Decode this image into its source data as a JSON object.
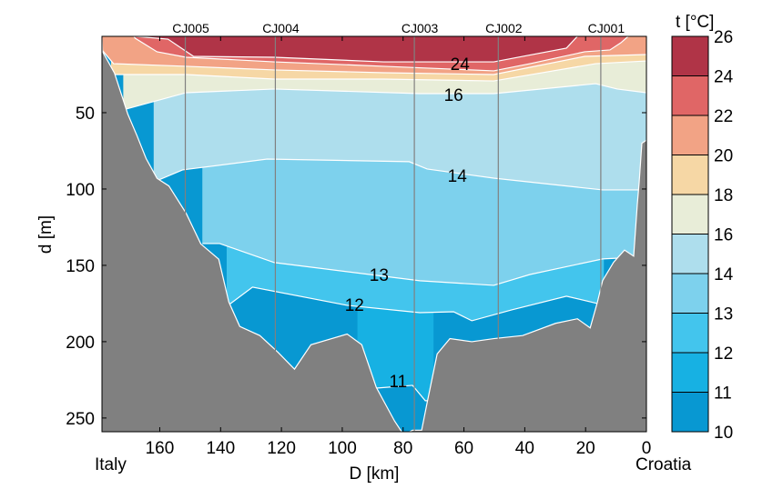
{
  "chart_data": {
    "type": "contour",
    "xlabel": "D [km]",
    "ylabel": "d [m]",
    "xlim": [
      179,
      0
    ],
    "ylim": [
      259,
      0
    ],
    "x_ticks": [
      160,
      140,
      120,
      100,
      80,
      60,
      40,
      20,
      0
    ],
    "y_ticks": [
      50,
      100,
      150,
      200,
      250
    ],
    "left_end_label": "Italy",
    "right_end_label": "Croatia",
    "colorbar": {
      "title": "t [°C]",
      "ticks": [
        10,
        11,
        12,
        13,
        14,
        16,
        18,
        20,
        22,
        24,
        26
      ],
      "colors": [
        "#0898d2",
        "#17b1e3",
        "#43c5ed",
        "#7dd1ed",
        "#aedeed",
        "#e8edd8",
        "#f6d7a5",
        "#f2a385",
        "#e06666",
        "#b03447"
      ]
    },
    "stations": [
      {
        "name": "CJ005",
        "D": 151.6
      },
      {
        "name": "CJ004",
        "D": 122
      },
      {
        "name": "CJ003",
        "D": 76.3
      },
      {
        "name": "CJ002",
        "D": 48.7
      },
      {
        "name": "CJ001",
        "D": 15
      }
    ],
    "isotherms": [
      {
        "t": 11,
        "label": "11",
        "label_at": [
          81.6,
          225.6
        ],
        "points": [
          [
            95,
            230.4
          ],
          [
            88.8,
            230.4
          ],
          [
            76.9,
            228.6
          ],
          [
            72.7,
            238.7
          ],
          [
            70,
            238.7
          ]
        ]
      },
      {
        "t": 12,
        "label": "12",
        "label_at": [
          96,
          175.6
        ],
        "points": [
          [
            138,
            175
          ],
          [
            136.7,
            175
          ],
          [
            129.5,
            164.3
          ],
          [
            98.4,
            176.2
          ],
          [
            74.5,
            181
          ],
          [
            63.4,
            180.4
          ],
          [
            57.4,
            186.3
          ],
          [
            44.3,
            179.2
          ],
          [
            26.3,
            170.2
          ],
          [
            16.1,
            175
          ],
          [
            14,
            175
          ]
        ]
      },
      {
        "t": 13,
        "label": "13",
        "label_at": [
          87.9,
          156
        ],
        "points": [
          [
            146,
            135.7
          ],
          [
            144.4,
            135.7
          ],
          [
            140.3,
            135.7
          ],
          [
            122.3,
            148.2
          ],
          [
            74.5,
            160.1
          ],
          [
            50.2,
            163.1
          ],
          [
            38.3,
            156
          ],
          [
            14.4,
            145.8
          ],
          [
            8.4,
            145.2
          ],
          [
            0,
            145
          ]
        ]
      },
      {
        "t": 14,
        "label": "14",
        "label_at": [
          62.2,
          91
        ],
        "points": [
          [
            162,
            94
          ],
          [
            160.3,
            94
          ],
          [
            152.5,
            87.5
          ],
          [
            124.7,
            80.4
          ],
          [
            78,
            82.1
          ],
          [
            72.1,
            86.9
          ],
          [
            50.2,
            92.9
          ],
          [
            14.4,
            100.6
          ],
          [
            2.4,
            100.6
          ],
          [
            0,
            100.6
          ]
        ]
      },
      {
        "t": 16,
        "label": "16",
        "label_at": [
          63.4,
          38
        ],
        "points": [
          [
            172,
            47.6
          ],
          [
            171,
            47.6
          ],
          [
            151.3,
            36.9
          ],
          [
            122.3,
            34.5
          ],
          [
            74.5,
            37.5
          ],
          [
            50.2,
            37.5
          ],
          [
            16.7,
            31
          ],
          [
            9.6,
            34.5
          ],
          [
            0,
            36.9
          ]
        ]
      },
      {
        "t": 18,
        "label": "",
        "points": [
          [
            176,
            25
          ],
          [
            174.6,
            25
          ],
          [
            151.3,
            25
          ],
          [
            122.3,
            28
          ],
          [
            86.4,
            28
          ],
          [
            50.2,
            29.2
          ],
          [
            16.7,
            17.9
          ],
          [
            0,
            16.1
          ]
        ]
      },
      {
        "t": 20,
        "label": "",
        "points": [
          [
            179,
            8.9
          ],
          [
            175.2,
            17.9
          ],
          [
            151.3,
            19.6
          ],
          [
            122.3,
            22
          ],
          [
            86.4,
            23.8
          ],
          [
            50.2,
            25
          ],
          [
            20.3,
            13.1
          ],
          [
            0,
            11.9
          ]
        ]
      },
      {
        "t": 22,
        "label": "",
        "points": [
          [
            168.5,
            0
          ],
          [
            168.1,
            1.2
          ],
          [
            160.9,
            10.1
          ],
          [
            151.3,
            13.7
          ],
          [
            122.3,
            16.7
          ],
          [
            86.4,
            19.6
          ],
          [
            50.2,
            22.6
          ],
          [
            38.3,
            17.9
          ],
          [
            20.3,
            10.1
          ],
          [
            12,
            8.9
          ],
          [
            8.4,
            4.2
          ],
          [
            6,
            0
          ]
        ]
      },
      {
        "t": 24,
        "label": "24",
        "label_at": [
          61.3,
          17.9
        ],
        "points": [
          [
            168.1,
            0
          ],
          [
            157.3,
            1.8
          ],
          [
            148.9,
            13.1
          ],
          [
            122.3,
            13.7
          ],
          [
            86.4,
            16.7
          ],
          [
            50.2,
            16.7
          ],
          [
            26.3,
            7.7
          ],
          [
            22.7,
            0
          ]
        ]
      }
    ],
    "bathymetry": [
      [
        179,
        0
      ],
      [
        178.8,
        10
      ],
      [
        174.9,
        24
      ],
      [
        170.5,
        51
      ],
      [
        167.5,
        65
      ],
      [
        164.5,
        80
      ],
      [
        160.9,
        93
      ],
      [
        157,
        98
      ],
      [
        151.3,
        116
      ],
      [
        146.5,
        136
      ],
      [
        140.6,
        146
      ],
      [
        137.3,
        174
      ],
      [
        133.7,
        190
      ],
      [
        127.1,
        196
      ],
      [
        121.1,
        207
      ],
      [
        115.7,
        218
      ],
      [
        110.3,
        202
      ],
      [
        98.4,
        195
      ],
      [
        93.6,
        202
      ],
      [
        88.8,
        230
      ],
      [
        82.8,
        252
      ],
      [
        79.8,
        261
      ],
      [
        76.9,
        258
      ],
      [
        73.9,
        258
      ],
      [
        72.1,
        240
      ],
      [
        68.8,
        208
      ],
      [
        64.6,
        198
      ],
      [
        57.4,
        200
      ],
      [
        50.2,
        198
      ],
      [
        40.7,
        196
      ],
      [
        29.9,
        188
      ],
      [
        22.7,
        185
      ],
      [
        18.5,
        191
      ],
      [
        16.1,
        174
      ],
      [
        14.4,
        160
      ],
      [
        10.8,
        148
      ],
      [
        7.2,
        140
      ],
      [
        4.2,
        144
      ],
      [
        3,
        110
      ],
      [
        2.4,
        96
      ],
      [
        1.5,
        70
      ],
      [
        0,
        68
      ]
    ]
  }
}
